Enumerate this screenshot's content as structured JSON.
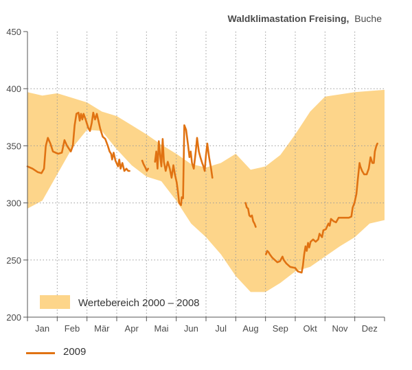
{
  "title": {
    "main": "Waldklimastation Freising,",
    "sub": "Buche"
  },
  "colors": {
    "band": "#fdd58a",
    "line": "#e07212",
    "grid": "#9a9a9a",
    "axis": "#555555"
  },
  "chart_data": {
    "type": "area",
    "ylim": [
      200,
      450
    ],
    "yticks": [
      "200",
      "250",
      "300",
      "350",
      "400",
      "450"
    ],
    "months": [
      "Jan",
      "Feb",
      "Mär",
      "Apr",
      "Mai",
      "Jun",
      "Jul",
      "Aug",
      "Sep",
      "Okt",
      "Nov",
      "Dez"
    ],
    "grid": true,
    "band": {
      "name": "Wertebereich 2000 – 2008",
      "x": [
        0,
        0.5,
        1,
        1.5,
        2,
        2.5,
        3,
        3.5,
        4,
        4.5,
        5,
        5.5,
        6,
        6.5,
        7,
        7.5,
        8,
        8.5,
        9,
        9.5,
        10,
        10.5,
        11,
        11.5,
        12
      ],
      "upper": [
        397,
        394,
        396,
        392,
        388,
        380,
        376,
        368,
        360,
        351,
        343,
        334,
        331,
        335,
        343,
        329,
        332,
        342,
        360,
        380,
        393,
        395,
        397,
        398,
        399
      ],
      "lower": [
        295,
        302,
        325,
        348,
        364,
        363,
        347,
        333,
        323,
        319,
        302,
        282,
        270,
        255,
        236,
        222,
        222,
        230,
        240,
        244,
        253,
        262,
        270,
        282,
        285
      ]
    },
    "series": [
      {
        "name": "2009",
        "segments": [
          [
            [
              0,
              332
            ],
            [
              0.2,
              330
            ],
            [
              0.4,
              327
            ],
            [
              0.55,
              326
            ],
            [
              0.65,
              330
            ],
            [
              0.72,
              350
            ],
            [
              0.8,
              357
            ],
            [
              0.9,
              352
            ],
            [
              1.0,
              345
            ],
            [
              1.2,
              343
            ],
            [
              1.35,
              344
            ],
            [
              1.45,
              355
            ],
            [
              1.55,
              350
            ],
            [
              1.7,
              345
            ],
            [
              1.78,
              350
            ],
            [
              1.85,
              368
            ],
            [
              1.92,
              378
            ],
            [
              2.0,
              379
            ],
            [
              2.05,
              372
            ],
            [
              2.1,
              378
            ],
            [
              2.15,
              373
            ],
            [
              2.2,
              378
            ],
            [
              2.28,
              373
            ],
            [
              2.38,
              366
            ],
            [
              2.45,
              363
            ],
            [
              2.52,
              370
            ],
            [
              2.58,
              379
            ],
            [
              2.65,
              373
            ],
            [
              2.72,
              378
            ],
            [
              2.78,
              372
            ],
            [
              2.85,
              365
            ],
            [
              2.95,
              358
            ],
            [
              3.05,
              356
            ],
            [
              3.15,
              350
            ],
            [
              3.22,
              345
            ],
            [
              3.28,
              343
            ],
            [
              3.32,
              338
            ],
            [
              3.38,
              344
            ],
            [
              3.45,
              337
            ],
            [
              3.55,
              332
            ],
            [
              3.6,
              338
            ],
            [
              3.65,
              330
            ],
            [
              3.72,
              335
            ],
            [
              3.8,
              328
            ],
            [
              3.88,
              330
            ],
            [
              3.95,
              328
            ],
            [
              4.0,
              328
            ]
          ],
          [
            [
              4.5,
              337
            ],
            [
              4.55,
              334
            ],
            [
              4.62,
              331
            ],
            [
              4.68,
              328
            ],
            [
              4.73,
              330
            ]
          ],
          [
            [
              5.0,
              336
            ],
            [
              5.05,
              345
            ],
            [
              5.1,
              330
            ],
            [
              5.15,
              354
            ],
            [
              5.2,
              342
            ],
            [
              5.25,
              332
            ],
            [
              5.3,
              356
            ],
            [
              5.35,
              336
            ],
            [
              5.42,
              328
            ],
            [
              5.5,
              336
            ],
            [
              5.58,
              330
            ],
            [
              5.65,
              322
            ],
            [
              5.72,
              333
            ],
            [
              5.78,
              325
            ],
            [
              5.85,
              318
            ],
            [
              5.9,
              310
            ],
            [
              5.95,
              300
            ],
            [
              6.02,
              298
            ],
            [
              6.05,
              305
            ],
            [
              6.1,
              304
            ],
            [
              6.15,
              368
            ],
            [
              6.22,
              364
            ],
            [
              6.3,
              350
            ],
            [
              6.35,
              340
            ],
            [
              6.4,
              345
            ],
            [
              6.45,
              335
            ],
            [
              6.52,
              330
            ],
            [
              6.6,
              345
            ],
            [
              6.65,
              357
            ],
            [
              6.72,
              345
            ],
            [
              6.78,
              340
            ],
            [
              6.85,
              335
            ],
            [
              6.9,
              332
            ],
            [
              6.95,
              328
            ],
            [
              7.0,
              342
            ],
            [
              7.05,
              352
            ],
            [
              7.12,
              340
            ],
            [
              7.2,
              330
            ],
            [
              7.25,
              322
            ]
          ]
        ],
        "dx": [
          [
            8.55,
            300
          ],
          [
            8.6,
            296
          ],
          [
            8.65,
            295
          ],
          [
            8.7,
            289
          ],
          [
            8.75,
            288
          ],
          [
            8.8,
            289
          ],
          [
            8.85,
            284
          ],
          [
            8.9,
            282
          ],
          [
            8.95,
            279
          ]
        ],
        "tail": [
          [
            9.35,
            255
          ],
          [
            9.4,
            258
          ],
          [
            9.45,
            257
          ],
          [
            9.5,
            255
          ],
          [
            9.6,
            252
          ],
          [
            9.7,
            250
          ],
          [
            9.8,
            248
          ],
          [
            9.9,
            249
          ],
          [
            10.0,
            253
          ],
          [
            10.05,
            250
          ],
          [
            10.15,
            247
          ],
          [
            10.3,
            244
          ],
          [
            10.5,
            243
          ],
          [
            10.6,
            240
          ],
          [
            10.75,
            239
          ],
          [
            10.8,
            245
          ],
          [
            10.85,
            255
          ],
          [
            10.9,
            262
          ],
          [
            10.95,
            258
          ],
          [
            11.0,
            265
          ],
          [
            11.05,
            261
          ],
          [
            11.1,
            266
          ],
          [
            11.2,
            268
          ],
          [
            11.3,
            266
          ],
          [
            11.4,
            268
          ],
          [
            11.45,
            273
          ],
          [
            11.55,
            270
          ],
          [
            11.6,
            276
          ],
          [
            11.7,
            277
          ],
          [
            11.8,
            282
          ],
          [
            11.85,
            280
          ],
          [
            11.9,
            286
          ],
          [
            12.0,
            284
          ],
          [
            12.1,
            283
          ],
          [
            12.2,
            287
          ],
          [
            12.4,
            287
          ],
          [
            12.6,
            287
          ],
          [
            12.7,
            288
          ],
          [
            12.75,
            296
          ],
          [
            12.82,
            300
          ],
          [
            12.9,
            308
          ],
          [
            12.95,
            320
          ],
          [
            13.02,
            335
          ],
          [
            13.05,
            332
          ],
          [
            13.12,
            328
          ],
          [
            13.2,
            325
          ],
          [
            13.3,
            325
          ],
          [
            13.38,
            330
          ],
          [
            13.45,
            340
          ],
          [
            13.52,
            335
          ],
          [
            13.58,
            335
          ],
          [
            13.62,
            345
          ],
          [
            13.68,
            350
          ],
          [
            13.72,
            352
          ]
        ]
      }
    ]
  }
}
